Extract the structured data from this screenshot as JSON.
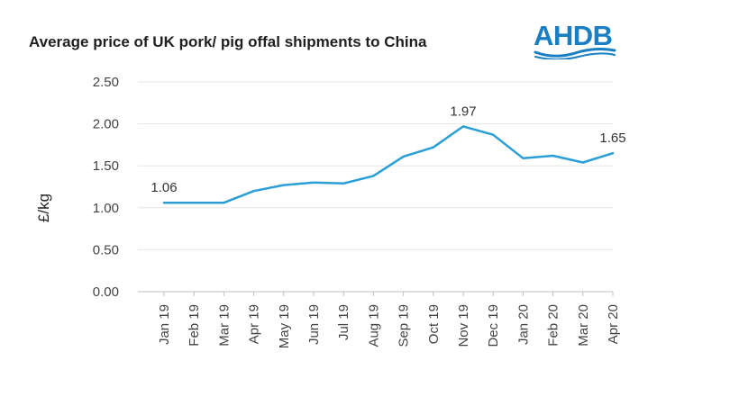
{
  "chart_data": {
    "type": "line",
    "title": "Average price of UK pork/ pig offal shipments to China",
    "ylabel": "£/kg",
    "xlabel": "",
    "ylim": [
      0,
      2.5
    ],
    "yticks": [
      "0.00",
      "0.50",
      "1.00",
      "1.50",
      "2.00",
      "2.50"
    ],
    "grid": true,
    "categories": [
      "Jan 19",
      "Feb 19",
      "Mar 19",
      "Apr 19",
      "May 19",
      "Jun 19",
      "Jul 19",
      "Aug 19",
      "Sep 19",
      "Oct 19",
      "Nov 19",
      "Dec 19",
      "Jan 20",
      "Feb 20",
      "Mar 20",
      "Apr 20"
    ],
    "series": [
      {
        "values": [
          1.06,
          1.06,
          1.06,
          1.2,
          1.27,
          1.3,
          1.29,
          1.38,
          1.61,
          1.72,
          1.97,
          1.87,
          1.59,
          1.62,
          1.54,
          1.65
        ]
      }
    ],
    "annotations": [
      {
        "index": 0,
        "text": "1.06"
      },
      {
        "index": 10,
        "text": "1.97"
      },
      {
        "index": 15,
        "text": "1.65"
      }
    ],
    "line_color": "#2a9fd6"
  },
  "logo": {
    "text": "AHDB",
    "color": "#1a7fc2"
  }
}
